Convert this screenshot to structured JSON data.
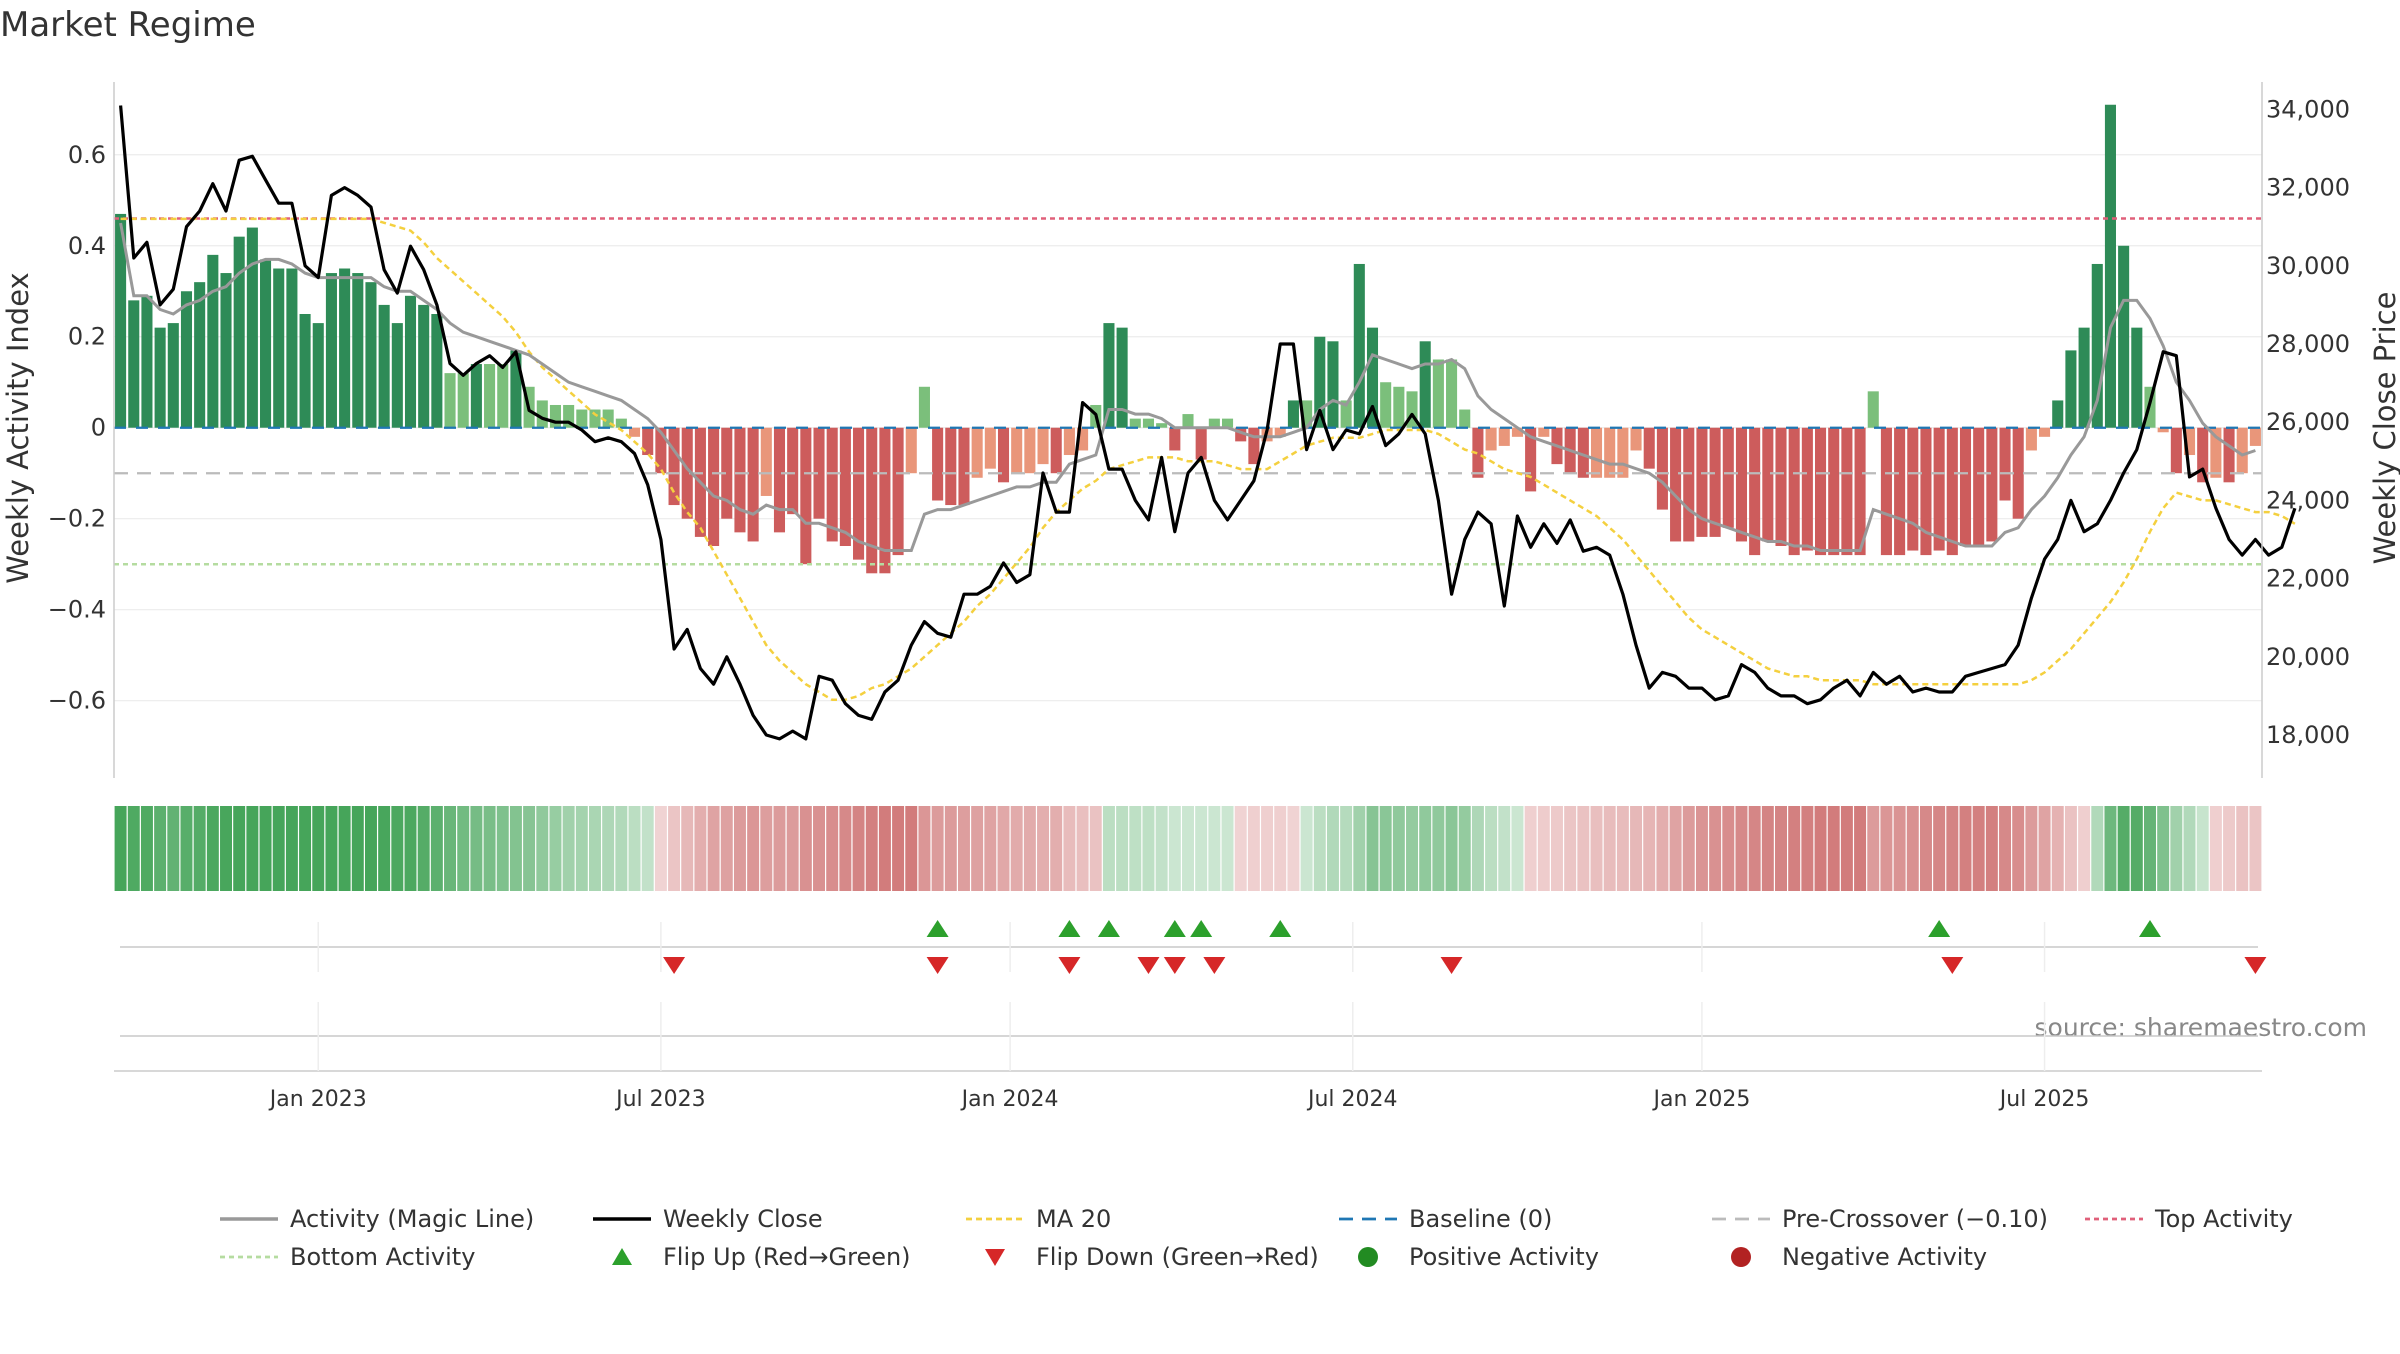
{
  "chart_data": {
    "type": "bar",
    "title": "Market Regime",
    "source": "source: sharemaestro.com",
    "ylabel_left": "Weekly Activity Index",
    "ylabel_right": "Weekly Close Price",
    "y_left_range": [
      -0.77,
      0.76
    ],
    "y_right_range": [
      16900,
      34700
    ],
    "y_left_ticks": [
      {
        "v": 0.6,
        "label": "0.6"
      },
      {
        "v": 0.4,
        "label": "0.4"
      },
      {
        "v": 0.2,
        "label": "0.2"
      },
      {
        "v": 0,
        "label": "0"
      },
      {
        "v": -0.2,
        "label": "−0.2"
      },
      {
        "v": -0.4,
        "label": "−0.4"
      },
      {
        "v": -0.6,
        "label": "−0.6"
      }
    ],
    "y_right_ticks": [
      {
        "v": 34000,
        "label": "34,000"
      },
      {
        "v": 32000,
        "label": "32,000"
      },
      {
        "v": 30000,
        "label": "30,000"
      },
      {
        "v": 28000,
        "label": "28,000"
      },
      {
        "v": 26000,
        "label": "26,000"
      },
      {
        "v": 24000,
        "label": "24,000"
      },
      {
        "v": 22000,
        "label": "22,000"
      },
      {
        "v": 20000,
        "label": "20,000"
      },
      {
        "v": 18000,
        "label": "18,000"
      }
    ],
    "x_ticks": [
      {
        "week": 15,
        "label": "Jan 2023"
      },
      {
        "week": 41,
        "label": "Jul 2023"
      },
      {
        "week": 67.5,
        "label": "Jan 2024"
      },
      {
        "week": 93.5,
        "label": "Jul 2024"
      },
      {
        "week": 120,
        "label": "Jan 2025"
      },
      {
        "week": 146,
        "label": "Jul 2025"
      }
    ],
    "reference_lines": {
      "top_activity": 0.46,
      "bottom_activity": -0.3,
      "pre_crossover": -0.1,
      "baseline": 0
    },
    "activity_index": [
      0.47,
      0.28,
      0.29,
      0.22,
      0.23,
      0.3,
      0.32,
      0.38,
      0.34,
      0.42,
      0.44,
      0.37,
      0.35,
      0.35,
      0.25,
      0.23,
      0.34,
      0.35,
      0.34,
      0.32,
      0.27,
      0.23,
      0.29,
      0.27,
      0.25,
      0.12,
      0.12,
      0.14,
      0.14,
      0.14,
      0.17,
      0.09,
      0.06,
      0.05,
      0.05,
      0.04,
      0.04,
      0.04,
      0.02,
      -0.02,
      -0.06,
      -0.1,
      -0.17,
      -0.2,
      -0.24,
      -0.26,
      -0.2,
      -0.23,
      -0.25,
      -0.15,
      -0.23,
      -0.19,
      -0.3,
      -0.2,
      -0.25,
      -0.26,
      -0.29,
      -0.32,
      -0.32,
      -0.28,
      -0.1,
      0.09,
      -0.16,
      -0.17,
      -0.17,
      -0.11,
      -0.09,
      -0.12,
      -0.1,
      -0.1,
      -0.08,
      -0.1,
      -0.06,
      -0.05,
      0.05,
      0.23,
      0.22,
      0.02,
      0.02,
      0.01,
      -0.05,
      0.03,
      -0.07,
      0.02,
      0.02,
      -0.03,
      -0.08,
      -0.03,
      -0.02,
      0.06,
      0.06,
      0.2,
      0.19,
      0.06,
      0.36,
      0.22,
      0.1,
      0.09,
      0.08,
      0.19,
      0.15,
      0.15,
      0.04,
      -0.11,
      -0.05,
      -0.04,
      -0.02,
      -0.14,
      -0.02,
      -0.08,
      -0.1,
      -0.11,
      -0.11,
      -0.11,
      -0.11,
      -0.05,
      -0.09,
      -0.18,
      -0.25,
      -0.25,
      -0.24,
      -0.24,
      -0.22,
      -0.25,
      -0.28,
      -0.25,
      -0.26,
      -0.28,
      -0.27,
      -0.28,
      -0.28,
      -0.28,
      -0.28,
      0.08,
      -0.28,
      -0.28,
      -0.27,
      -0.28,
      -0.27,
      -0.28,
      -0.26,
      -0.26,
      -0.25,
      -0.16,
      -0.2,
      -0.05,
      -0.02,
      0.06,
      0.17,
      0.22,
      0.36,
      0.71,
      0.4,
      0.22,
      0.09,
      -0.01,
      -0.1,
      -0.06,
      -0.12,
      -0.11,
      -0.12,
      -0.1,
      -0.04
    ],
    "magic_line": [
      0.45,
      0.29,
      0.29,
      0.26,
      0.25,
      0.27,
      0.28,
      0.3,
      0.31,
      0.34,
      0.36,
      0.37,
      0.37,
      0.36,
      0.34,
      0.33,
      0.33,
      0.33,
      0.33,
      0.33,
      0.31,
      0.3,
      0.3,
      0.28,
      0.26,
      0.23,
      0.21,
      0.2,
      0.19,
      0.18,
      0.17,
      0.16,
      0.14,
      0.12,
      0.1,
      0.09,
      0.08,
      0.07,
      0.06,
      0.04,
      0.02,
      -0.01,
      -0.05,
      -0.09,
      -0.12,
      -0.15,
      -0.16,
      -0.18,
      -0.19,
      -0.17,
      -0.18,
      -0.18,
      -0.21,
      -0.21,
      -0.22,
      -0.23,
      -0.25,
      -0.26,
      -0.27,
      -0.27,
      -0.27,
      -0.19,
      -0.18,
      -0.18,
      -0.17,
      -0.16,
      -0.15,
      -0.14,
      -0.13,
      -0.13,
      -0.12,
      -0.12,
      -0.08,
      -0.07,
      -0.06,
      0.04,
      0.04,
      0.03,
      0.03,
      0.02,
      0.0,
      0.0,
      0.0,
      0.0,
      0.0,
      -0.01,
      -0.02,
      -0.02,
      -0.02,
      -0.01,
      0.0,
      0.04,
      0.06,
      0.05,
      0.1,
      0.16,
      0.15,
      0.14,
      0.13,
      0.14,
      0.14,
      0.15,
      0.13,
      0.07,
      0.04,
      0.02,
      0.0,
      -0.02,
      -0.03,
      -0.04,
      -0.05,
      -0.06,
      -0.07,
      -0.08,
      -0.08,
      -0.09,
      -0.1,
      -0.12,
      -0.15,
      -0.18,
      -0.2,
      -0.21,
      -0.22,
      -0.23,
      -0.24,
      -0.25,
      -0.25,
      -0.26,
      -0.26,
      -0.27,
      -0.27,
      -0.27,
      -0.27,
      -0.18,
      -0.19,
      -0.2,
      -0.21,
      -0.23,
      -0.24,
      -0.25,
      -0.26,
      -0.26,
      -0.26,
      -0.23,
      -0.22,
      -0.18,
      -0.15,
      -0.11,
      -0.06,
      -0.02,
      0.06,
      0.22,
      0.28,
      0.28,
      0.24,
      0.18,
      0.1,
      0.06,
      0.01,
      -0.02,
      -0.04,
      -0.06,
      -0.05
    ],
    "weekly_close": [
      34100,
      30200,
      30600,
      29000,
      29400,
      31000,
      31400,
      32100,
      31400,
      32700,
      32800,
      32200,
      31600,
      31600,
      30000,
      29700,
      31800,
      32000,
      31800,
      31500,
      29900,
      29300,
      30500,
      29900,
      29000,
      27500,
      27200,
      27500,
      27700,
      27400,
      27800,
      26300,
      26100,
      26000,
      26000,
      25800,
      25500,
      25600,
      25500,
      25200,
      24400,
      23000,
      20200,
      20700,
      19700,
      19300,
      20000,
      19300,
      18500,
      18000,
      17900,
      18100,
      17900,
      19500,
      19400,
      18800,
      18500,
      18400,
      19100,
      19400,
      20300,
      20900,
      20600,
      20500,
      21600,
      21600,
      21800,
      22400,
      21900,
      22100,
      24700,
      23700,
      23700,
      26500,
      26200,
      24800,
      24800,
      24000,
      23500,
      25100,
      23200,
      24700,
      25100,
      24000,
      23500,
      24000,
      24500,
      25800,
      28000,
      28000,
      25300,
      26300,
      25300,
      25800,
      25700,
      26400,
      25400,
      25700,
      26200,
      25700,
      24000,
      21600,
      23000,
      23700,
      23400,
      21300,
      23600,
      22800,
      23400,
      22900,
      23500,
      22700,
      22800,
      22600,
      21600,
      20300,
      19200,
      19600,
      19500,
      19200,
      19200,
      18900,
      19000,
      19800,
      19600,
      19200,
      19000,
      19000,
      18800,
      18900,
      19200,
      19400,
      19000,
      19600,
      19300,
      19500,
      19100,
      19200,
      19100,
      19100,
      19500,
      19600,
      19700,
      19800,
      20300,
      21500,
      22500,
      23000,
      24000,
      23200,
      23400,
      24000,
      24700,
      25300,
      26500,
      27800,
      27700,
      24600,
      24800,
      23800,
      23000,
      22600,
      23000,
      22600,
      22800,
      23800
    ],
    "ma20": [
      31200,
      31200,
      31200,
      31200,
      31200,
      31200,
      31200,
      31200,
      31200,
      31200,
      31200,
      31200,
      31200,
      31200,
      31200,
      31200,
      31200,
      31200,
      31200,
      31200,
      31100,
      31000,
      30900,
      30600,
      30200,
      29900,
      29600,
      29300,
      29000,
      28700,
      28300,
      27800,
      27400,
      27100,
      26800,
      26500,
      26200,
      26000,
      25800,
      25500,
      25200,
      24800,
      24200,
      23700,
      23300,
      22700,
      22100,
      21500,
      20900,
      20300,
      19900,
      19600,
      19300,
      19100,
      18900,
      18900,
      19000,
      19200,
      19300,
      19500,
      19700,
      20000,
      20300,
      20600,
      20900,
      21300,
      21600,
      22000,
      22400,
      22800,
      23300,
      23700,
      24000,
      24300,
      24500,
      24800,
      24900,
      25000,
      25100,
      25100,
      25100,
      25000,
      25000,
      25000,
      24900,
      24800,
      24800,
      24800,
      25000,
      25200,
      25400,
      25500,
      25600,
      25600,
      25600,
      25700,
      25800,
      25800,
      25800,
      25800,
      25700,
      25500,
      25300,
      25200,
      25000,
      24800,
      24700,
      24600,
      24400,
      24200,
      24000,
      23800,
      23600,
      23300,
      23000,
      22600,
      22200,
      21800,
      21400,
      21000,
      20700,
      20500,
      20300,
      20100,
      19900,
      19700,
      19600,
      19500,
      19500,
      19400,
      19400,
      19400,
      19400,
      19300,
      19300,
      19300,
      19300,
      19300,
      19300,
      19300,
      19300,
      19300,
      19300,
      19300,
      19300,
      19400,
      19600,
      19900,
      20200,
      20600,
      21000,
      21400,
      21900,
      22500,
      23200,
      23800,
      24200,
      24100,
      24000,
      24000,
      23900,
      23800,
      23700,
      23700,
      23600,
      23400
    ],
    "flip_up_weeks": [
      62,
      72,
      75,
      80,
      82,
      88,
      138,
      154
    ],
    "flip_down_weeks": [
      42,
      62,
      72,
      78,
      80,
      83,
      101,
      139,
      162
    ],
    "legend": [
      {
        "key": "magic",
        "label": "Activity (Magic Line)"
      },
      {
        "key": "close",
        "label": "Weekly Close"
      },
      {
        "key": "ma20",
        "label": "MA 20"
      },
      {
        "key": "baseline",
        "label": "Baseline (0)"
      },
      {
        "key": "precross",
        "label": "Pre-Crossover (−0.10)"
      },
      {
        "key": "top",
        "label": "Top Activity"
      },
      {
        "key": "bottom",
        "label": "Bottom Activity"
      },
      {
        "key": "flipup",
        "label": "Flip Up (Red→Green)"
      },
      {
        "key": "flipdown",
        "label": "Flip Down (Green→Red)"
      },
      {
        "key": "posact",
        "label": "Positive Activity"
      },
      {
        "key": "negact",
        "label": "Negative Activity"
      }
    ],
    "colors": {
      "pos_dark": "#2e8b57",
      "pos_light": "#7bbf7b",
      "neg_dark": "#cd5c5c",
      "neg_light": "#e9967a",
      "magic": "#999999",
      "close": "#000000",
      "ma20": "#f4d03f",
      "baseline": "#1f77b4",
      "precross": "#bbbbbb",
      "top": "#e0607a",
      "bottom": "#b5dca0",
      "flipup": "#2ca02c",
      "flipdown": "#d62728",
      "posact": "#228b22",
      "negact": "#b22222"
    }
  }
}
